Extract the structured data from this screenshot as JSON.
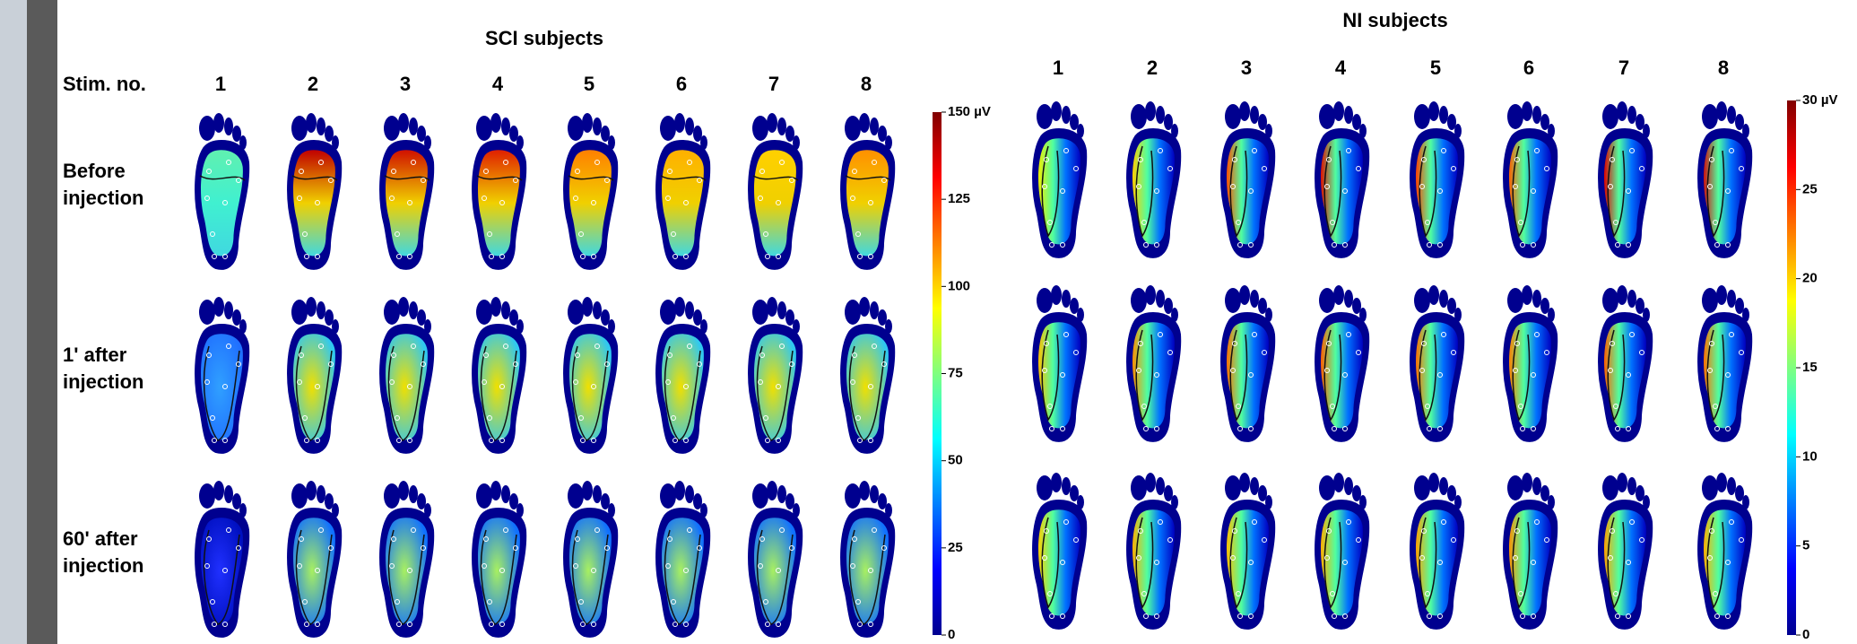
{
  "left_panel": {
    "title": "SCI subjects",
    "stim_label": "Stim. no.",
    "stim_numbers": [
      "1",
      "2",
      "3",
      "4",
      "5",
      "6",
      "7",
      "8"
    ],
    "row_labels": [
      [
        "Before",
        "injection"
      ],
      [
        "1' after",
        "injection"
      ],
      [
        "60' after",
        "injection"
      ]
    ],
    "colorbar": {
      "range": [
        0,
        150
      ],
      "ticks": [
        {
          "value": 150,
          "label": "150 µV"
        },
        125,
        100,
        75,
        50,
        25,
        0
      ]
    }
  },
  "right_panel": {
    "title": "NI subjects",
    "stim_numbers": [
      "1",
      "2",
      "3",
      "4",
      "5",
      "6",
      "7",
      "8"
    ],
    "colorbar": {
      "range": [
        0,
        30
      ],
      "ticks": [
        {
          "value": 30,
          "label": "30 µV"
        },
        25,
        20,
        15,
        10,
        5,
        0
      ]
    }
  }
}
